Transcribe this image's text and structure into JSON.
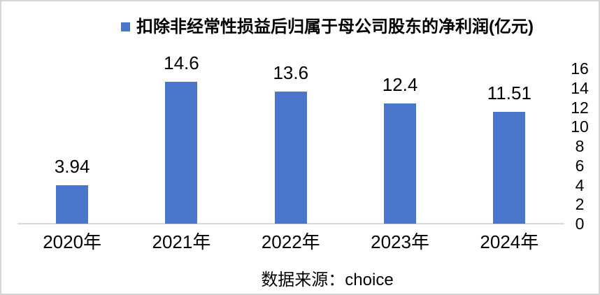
{
  "chart_data": {
    "type": "bar",
    "title": "扣除非经常性损益后归属于母公司股东的净利润(亿元)",
    "categories": [
      "2020年",
      "2021年",
      "2022年",
      "2023年",
      "2024年"
    ],
    "values": [
      3.94,
      14.6,
      13.6,
      12.4,
      11.51
    ],
    "data_labels": [
      "3.94",
      "14.6",
      "13.6",
      "12.4",
      "11.51"
    ],
    "xlabel": "",
    "ylabel": "",
    "ylim": [
      0,
      16
    ],
    "y_ticks": [
      0,
      2,
      4,
      6,
      8,
      10,
      12,
      14,
      16
    ],
    "y_axis_side": "right",
    "legend_position": "top",
    "grid": false,
    "colors": {
      "bar": "#4a76cb",
      "axis_line": "#d9d9d9",
      "text": "#000000",
      "border": "#d6d6d6"
    },
    "source_note": "数据来源：choice"
  }
}
